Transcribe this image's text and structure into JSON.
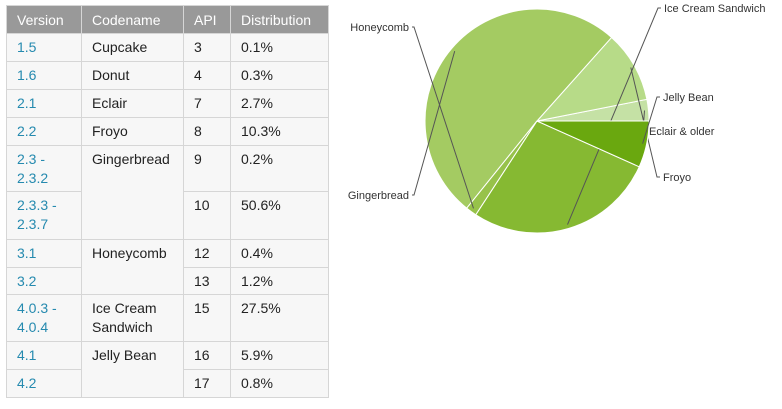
{
  "table": {
    "headers": [
      "Version",
      "Codename",
      "API",
      "Distribution"
    ],
    "rows": [
      {
        "version": "1.5",
        "codename": "Cupcake",
        "api": "3",
        "distribution": "0.1%"
      },
      {
        "version": "1.6",
        "codename": "Donut",
        "api": "4",
        "distribution": "0.3%"
      },
      {
        "version": "2.1",
        "codename": "Eclair",
        "api": "7",
        "distribution": "2.7%"
      },
      {
        "version": "2.2",
        "codename": "Froyo",
        "api": "8",
        "distribution": "10.3%"
      },
      {
        "version": "2.3 - 2.3.2",
        "codename": "Gingerbread",
        "api": "9",
        "distribution": "0.2%"
      },
      {
        "version": "2.3.3 - 2.3.7",
        "codename": "Gingerbread",
        "api": "10",
        "distribution": "50.6%"
      },
      {
        "version": "3.1",
        "codename": "Honeycomb",
        "api": "12",
        "distribution": "0.4%"
      },
      {
        "version": "3.2",
        "codename": "Honeycomb",
        "api": "13",
        "distribution": "1.2%"
      },
      {
        "version": "4.0.3 - 4.0.4",
        "codename": "Ice Cream Sandwich",
        "api": "15",
        "distribution": "27.5%"
      },
      {
        "version": "4.1",
        "codename": "Jelly Bean",
        "api": "16",
        "distribution": "5.9%"
      },
      {
        "version": "4.2",
        "codename": "Jelly Bean",
        "api": "17",
        "distribution": "0.8%"
      }
    ]
  },
  "chart_data": {
    "type": "pie",
    "title": "",
    "slices": [
      {
        "label": "Eclair & older",
        "value": 3.1,
        "color": "#c5e1a5"
      },
      {
        "label": "Froyo",
        "value": 10.3,
        "color": "#b7db88"
      },
      {
        "label": "Gingerbread",
        "value": 50.8,
        "color": "#a4cb62"
      },
      {
        "label": "Honeycomb",
        "value": 1.6,
        "color": "#97c24a"
      },
      {
        "label": "Ice Cream Sandwich",
        "value": 27.5,
        "color": "#86b932"
      },
      {
        "label": "Jelly Bean",
        "value": 6.7,
        "color": "#6aa80f"
      }
    ],
    "legend": "callout labels around pie"
  }
}
